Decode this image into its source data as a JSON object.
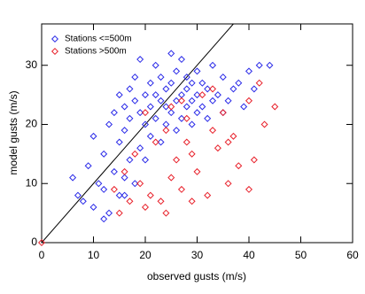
{
  "chart_data": {
    "type": "scatter",
    "x_label": "observed gusts (m/s)",
    "y_label": "model gusts (m/s)",
    "xlim": [
      0,
      60
    ],
    "xticks": [
      0,
      10,
      20,
      30,
      40,
      50,
      60
    ],
    "ylim": [
      0,
      37
    ],
    "yticks": [
      0,
      10,
      20,
      30
    ],
    "legend": "top-left",
    "series": [
      {
        "name": "Stations <=500m",
        "color": "#2a2ae8",
        "x": [
          6,
          7,
          8,
          9,
          10,
          10,
          11,
          12,
          12,
          13,
          13,
          14,
          14,
          15,
          15,
          15,
          16,
          16,
          16,
          17,
          17,
          17,
          18,
          18,
          18,
          19,
          19,
          19,
          20,
          20,
          20,
          21,
          21,
          21,
          22,
          22,
          22,
          23,
          23,
          23,
          24,
          24,
          24,
          25,
          25,
          25,
          26,
          26,
          26,
          27,
          27,
          27,
          28,
          28,
          28,
          29,
          29,
          29,
          30,
          30,
          30,
          31,
          31,
          32,
          32,
          33,
          33,
          34,
          35,
          35,
          36,
          37,
          38,
          39,
          40,
          41,
          42,
          44,
          16,
          12
        ],
        "values": [
          11,
          8,
          7,
          13,
          6,
          18,
          10,
          9,
          15,
          20,
          5,
          12,
          22,
          17,
          25,
          8,
          11,
          19,
          23,
          14,
          21,
          26,
          10,
          24,
          28,
          16,
          22,
          31,
          20,
          25,
          14,
          18,
          23,
          27,
          21,
          25,
          30,
          17,
          24,
          28,
          20,
          23,
          26,
          22,
          27,
          32,
          19,
          24,
          29,
          21,
          25,
          31,
          23,
          26,
          28,
          20,
          24,
          27,
          22,
          25,
          29,
          23,
          27,
          21,
          26,
          24,
          30,
          25,
          22,
          28,
          24,
          26,
          27,
          23,
          29,
          26,
          30,
          30,
          8,
          4
        ]
      },
      {
        "name": "Stations >500m",
        "color": "#e8202a",
        "x": [
          0,
          14,
          15,
          16,
          17,
          18,
          19,
          20,
          20,
          21,
          22,
          23,
          24,
          25,
          25,
          26,
          27,
          28,
          28,
          29,
          30,
          31,
          32,
          33,
          34,
          35,
          36,
          37,
          38,
          40,
          40,
          41,
          42,
          43,
          45,
          33,
          27,
          24,
          36,
          29
        ],
        "values": [
          0,
          9,
          5,
          12,
          7,
          15,
          10,
          6,
          22,
          8,
          17,
          7,
          19,
          11,
          23,
          14,
          9,
          21,
          17,
          7,
          12,
          25,
          8,
          19,
          16,
          22,
          10,
          18,
          13,
          24,
          9,
          14,
          27,
          20,
          23,
          26,
          24,
          5,
          17,
          15
        ]
      }
    ]
  }
}
